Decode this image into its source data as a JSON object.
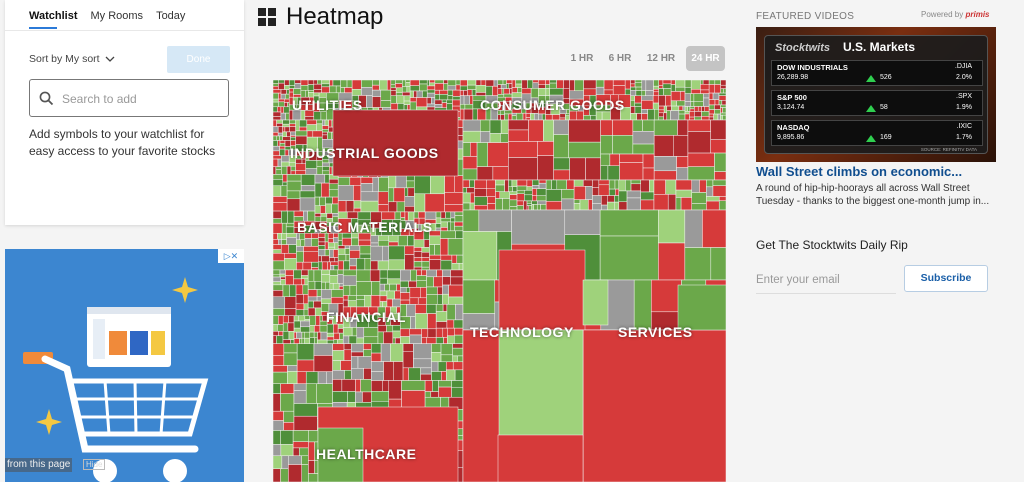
{
  "watchlist": {
    "tabs": [
      {
        "label": "Watchlist",
        "active": true
      },
      {
        "label": "My Rooms",
        "active": false
      },
      {
        "label": "Today",
        "active": false
      }
    ],
    "sort_label": "Sort by My sort",
    "done_label": "Done",
    "search_placeholder": "Search to add",
    "empty_message": "Add symbols to your watchlist for easy access to your favorite stocks"
  },
  "ad": {
    "hide_text": "from this page",
    "hide_button": "Hide"
  },
  "heatmap": {
    "title": "Heatmap",
    "timeframes": [
      {
        "label": "1 HR",
        "active": false
      },
      {
        "label": "6 HR",
        "active": false
      },
      {
        "label": "12 HR",
        "active": false
      },
      {
        "label": "24 HR",
        "active": true
      }
    ],
    "sectors": [
      "UTILITIES",
      "CONSUMER GOODS",
      "INDUSTRIAL GOODS",
      "BASIC MATERIALS",
      "FINANCIAL",
      "TECHNOLOGY",
      "SERVICES",
      "HEALTHCARE"
    ],
    "colors": {
      "up": "#6ba84a",
      "up_strong": "#4f8f3a",
      "up_light": "#9fd27b",
      "down": "#d63a3a",
      "down_strong": "#b02a2e",
      "flat": "#9a9a9a"
    }
  },
  "featured": {
    "label": "FEATURED VIDEOS",
    "powered_by": "Powered by",
    "powered_brand": "primis",
    "video": {
      "brand": "Stocktwits",
      "title": "U.S. Markets",
      "rows": [
        {
          "name": "DOW INDUSTRIALS",
          "value": "26,289.98",
          "change": "526",
          "symbol": ".DJIA",
          "percent": "2.0%"
        },
        {
          "name": "S&P 500",
          "value": "3,124.74",
          "change": "58",
          "symbol": ".SPX",
          "percent": "1.9%"
        },
        {
          "name": "NASDAQ",
          "value": "9,895.86",
          "change": "169",
          "symbol": ".IXIC",
          "percent": "1.7%"
        }
      ],
      "source": "SOURCE: REFINITIV DATA"
    },
    "headline": "Wall Street climbs on economic...",
    "summary": "A round of hip-hip-hoorays all across Wall Street Tuesday - thanks to the biggest one-month jump in..."
  },
  "newsletter": {
    "heading": "Get The Stocktwits Daily Rip",
    "email_placeholder": "Enter your email",
    "subscribe_label": "Subscribe"
  }
}
